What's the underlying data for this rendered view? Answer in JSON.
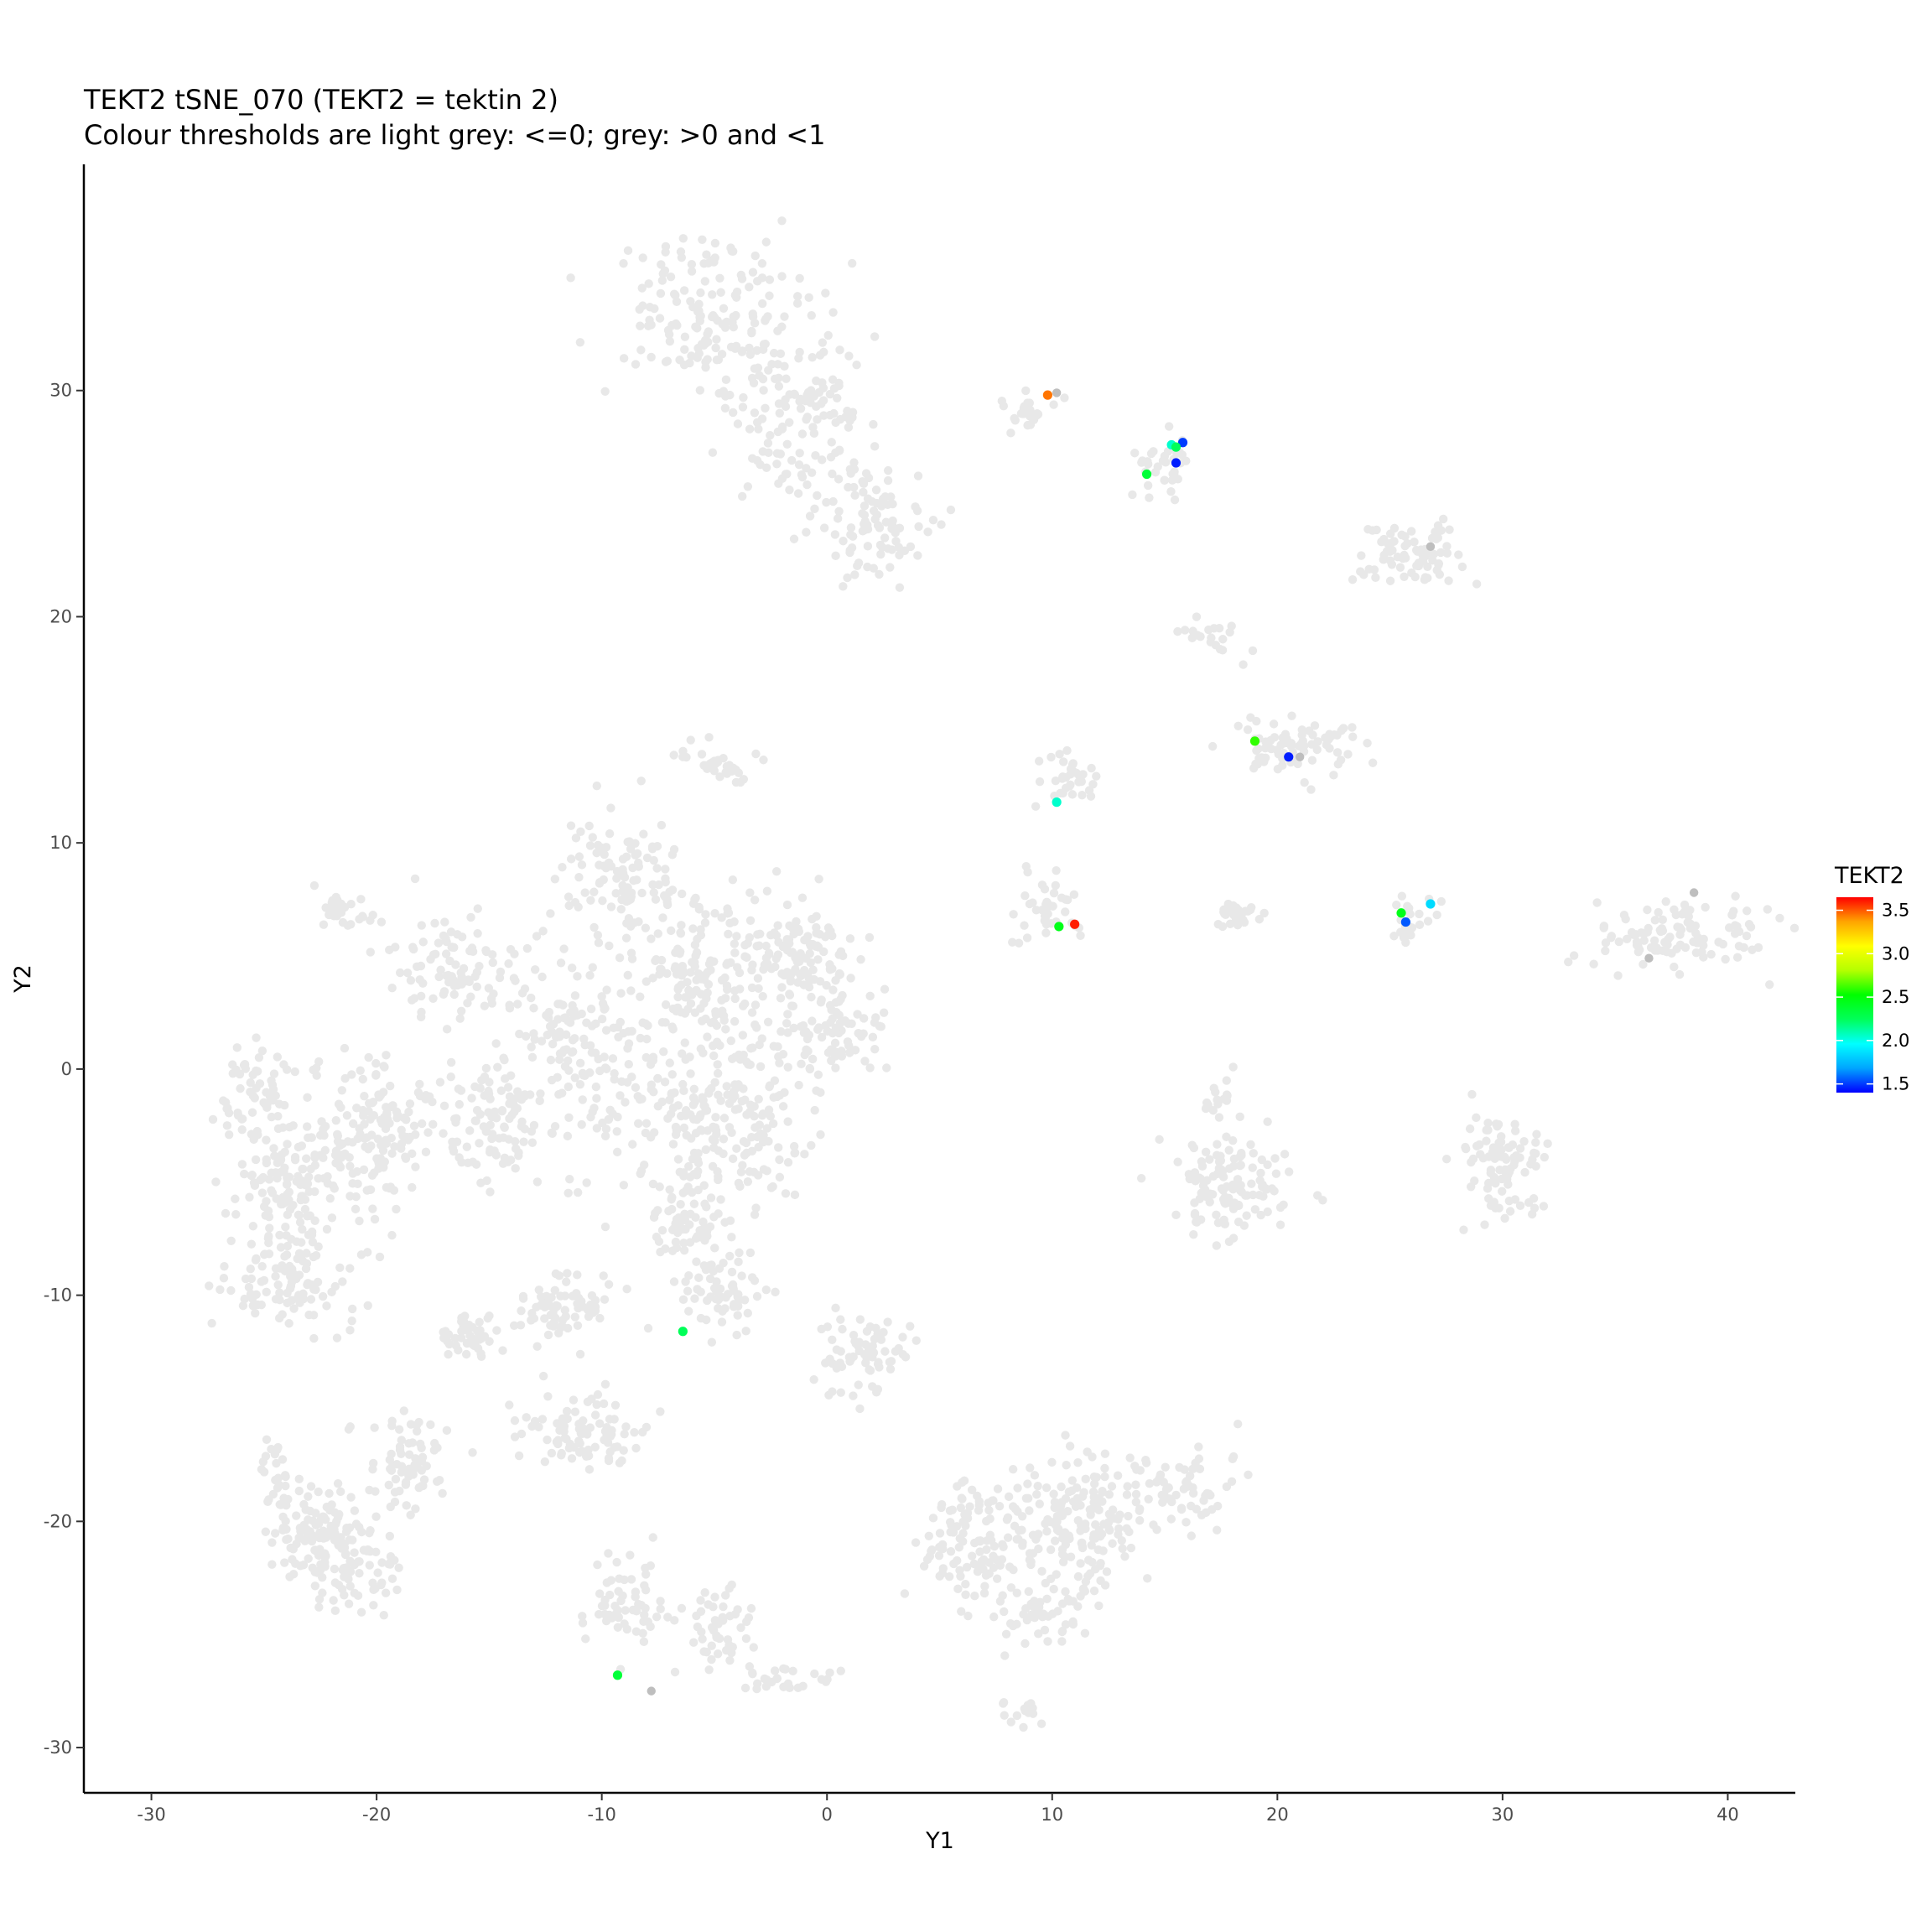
{
  "chart_data": {
    "type": "scatter",
    "title": "TEKT2 tSNE_070 (TEKT2 = tektin 2)",
    "subtitle": "Colour thresholds are light grey: <=0; grey: >0 and <1",
    "xlabel": "Y1",
    "ylabel": "Y2",
    "xlim": [
      -33,
      43
    ],
    "ylim": [
      -32,
      40
    ],
    "x_ticks": [
      -30,
      -20,
      -10,
      0,
      10,
      20,
      30,
      40
    ],
    "y_ticks": [
      -30,
      -20,
      -10,
      0,
      10,
      20,
      30
    ],
    "grid": false,
    "legend": {
      "title": "TEKT2",
      "placement": "right",
      "min": 1.4,
      "max": 3.65,
      "ticks": [
        1.5,
        2.0,
        2.5,
        3.0,
        3.5
      ],
      "tick_labels": [
        "1.5",
        "2.0",
        "2.5",
        "3.0",
        "3.5"
      ],
      "colors": [
        "#0000ff",
        "#00a5ff",
        "#00ffff",
        "#00ff5a",
        "#00ff00",
        "#b4ff00",
        "#ffff00",
        "#ffa500",
        "#ff0000"
      ]
    },
    "background_color": "#e8e8e8",
    "grey_color": "#bebebe",
    "background_clusters": [
      {
        "cx": -5.5,
        "cy": 33.5,
        "sx": 3.0,
        "sy": 2.2,
        "n": 150
      },
      {
        "cx": -1.5,
        "cy": 29.0,
        "sx": 2.2,
        "sy": 3.0,
        "n": 150
      },
      {
        "cx": 2.0,
        "cy": 24.0,
        "sx": 1.6,
        "sy": 1.8,
        "n": 90
      },
      {
        "cx": 9.0,
        "cy": 29.0,
        "sx": 0.9,
        "sy": 0.7,
        "n": 25
      },
      {
        "cx": 15.0,
        "cy": 26.8,
        "sx": 0.9,
        "sy": 0.9,
        "n": 35
      },
      {
        "cx": 26.0,
        "cy": 22.8,
        "sx": 1.6,
        "sy": 0.9,
        "n": 80
      },
      {
        "cx": 20.5,
        "cy": 14.3,
        "sx": 2.0,
        "sy": 0.9,
        "n": 80
      },
      {
        "cx": 10.8,
        "cy": 12.8,
        "sx": 0.9,
        "sy": 0.8,
        "n": 35
      },
      {
        "cx": 17.0,
        "cy": 19.0,
        "sx": 1.6,
        "sy": 0.6,
        "n": 20
      },
      {
        "cx": 10.0,
        "cy": 7.2,
        "sx": 1.1,
        "sy": 0.9,
        "n": 40
      },
      {
        "cx": 18.3,
        "cy": 6.8,
        "sx": 0.7,
        "sy": 0.4,
        "n": 30
      },
      {
        "cx": 25.8,
        "cy": 6.5,
        "sx": 0.8,
        "sy": 0.6,
        "n": 25
      },
      {
        "cx": 37.5,
        "cy": 5.8,
        "sx": 2.5,
        "sy": 1.2,
        "n": 110
      },
      {
        "cx": -5.0,
        "cy": 13.5,
        "sx": 1.4,
        "sy": 0.5,
        "n": 35
      },
      {
        "cx": -9.0,
        "cy": 8.5,
        "sx": 2.0,
        "sy": 2.0,
        "n": 110
      },
      {
        "cx": -5.0,
        "cy": 4.0,
        "sx": 2.2,
        "sy": 2.4,
        "n": 150
      },
      {
        "cx": -1.0,
        "cy": 5.0,
        "sx": 1.8,
        "sy": 1.6,
        "n": 110
      },
      {
        "cx": 0.0,
        "cy": 1.5,
        "sx": 1.7,
        "sy": 1.3,
        "n": 80
      },
      {
        "cx": -4.5,
        "cy": -2.5,
        "sx": 3.0,
        "sy": 2.6,
        "n": 220
      },
      {
        "cx": -11.0,
        "cy": 1.0,
        "sx": 2.8,
        "sy": 3.0,
        "n": 180
      },
      {
        "cx": -16.5,
        "cy": 4.5,
        "sx": 2.0,
        "sy": 1.5,
        "n": 90
      },
      {
        "cx": -21.5,
        "cy": 7.0,
        "sx": 0.8,
        "sy": 0.6,
        "n": 30
      },
      {
        "cx": -15.0,
        "cy": -2.5,
        "sx": 1.8,
        "sy": 2.0,
        "n": 100
      },
      {
        "cx": -20.0,
        "cy": -3.0,
        "sx": 1.8,
        "sy": 2.2,
        "n": 150
      },
      {
        "cx": -23.5,
        "cy": -5.5,
        "sx": 1.6,
        "sy": 2.2,
        "n": 140
      },
      {
        "cx": -25.5,
        "cy": -1.5,
        "sx": 1.0,
        "sy": 1.6,
        "n": 60
      },
      {
        "cx": -24.0,
        "cy": -9.5,
        "sx": 2.0,
        "sy": 1.4,
        "n": 90
      },
      {
        "cx": -16.0,
        "cy": -11.8,
        "sx": 1.0,
        "sy": 0.7,
        "n": 45
      },
      {
        "cx": -11.5,
        "cy": -10.5,
        "sx": 1.4,
        "sy": 1.0,
        "n": 70
      },
      {
        "cx": -4.5,
        "cy": -10.0,
        "sx": 1.3,
        "sy": 0.9,
        "n": 60
      },
      {
        "cx": -6.0,
        "cy": -7.0,
        "sx": 1.5,
        "sy": 1.0,
        "n": 60
      },
      {
        "cx": 1.5,
        "cy": -12.5,
        "sx": 1.4,
        "sy": 1.2,
        "n": 70
      },
      {
        "cx": -10.5,
        "cy": -16.0,
        "sx": 1.8,
        "sy": 1.0,
        "n": 90
      },
      {
        "cx": -21.0,
        "cy": -21.5,
        "sx": 1.4,
        "sy": 1.6,
        "n": 90
      },
      {
        "cx": -24.5,
        "cy": -18.5,
        "sx": 0.6,
        "sy": 1.4,
        "n": 30
      },
      {
        "cx": -23.0,
        "cy": -21.0,
        "sx": 1.3,
        "sy": 1.5,
        "n": 80
      },
      {
        "cx": -18.5,
        "cy": -17.5,
        "sx": 1.3,
        "sy": 1.4,
        "n": 70
      },
      {
        "cx": -9.0,
        "cy": -23.5,
        "sx": 1.2,
        "sy": 1.5,
        "n": 60
      },
      {
        "cx": -4.5,
        "cy": -25.0,
        "sx": 1.0,
        "sy": 1.3,
        "n": 50
      },
      {
        "cx": -1.5,
        "cy": -27.0,
        "sx": 1.6,
        "sy": 0.5,
        "n": 25
      },
      {
        "cx": 6.5,
        "cy": -21.0,
        "sx": 1.6,
        "sy": 2.0,
        "n": 110
      },
      {
        "cx": 11.0,
        "cy": -20.0,
        "sx": 2.0,
        "sy": 2.0,
        "n": 160
      },
      {
        "cx": 9.5,
        "cy": -24.0,
        "sx": 1.8,
        "sy": 1.2,
        "n": 60
      },
      {
        "cx": 16.0,
        "cy": -18.5,
        "sx": 1.8,
        "sy": 1.2,
        "n": 70
      },
      {
        "cx": 18.0,
        "cy": -5.0,
        "sx": 2.0,
        "sy": 1.6,
        "n": 120
      },
      {
        "cx": 17.5,
        "cy": -1.0,
        "sx": 0.6,
        "sy": 1.0,
        "n": 15
      },
      {
        "cx": 30.0,
        "cy": -4.2,
        "sx": 1.2,
        "sy": 1.4,
        "n": 90
      },
      {
        "cx": 8.5,
        "cy": -28.5,
        "sx": 1.2,
        "sy": 0.3,
        "n": 15
      }
    ],
    "grey_points": [
      {
        "x": 26.8,
        "y": 23.1
      },
      {
        "x": 36.5,
        "y": 4.9
      },
      {
        "x": 38.5,
        "y": 7.8
      },
      {
        "x": -7.8,
        "y": -27.5
      },
      {
        "x": 10.2,
        "y": 29.9
      },
      {
        "x": 21.0,
        "y": 13.8
      }
    ],
    "points": [
      {
        "x": 9.8,
        "y": 29.8,
        "value": 3.45
      },
      {
        "x": 15.8,
        "y": 27.7,
        "value": 1.5
      },
      {
        "x": 15.3,
        "y": 27.6,
        "value": 2.05
      },
      {
        "x": 15.5,
        "y": 27.5,
        "value": 2.25
      },
      {
        "x": 15.5,
        "y": 26.8,
        "value": 1.45
      },
      {
        "x": 14.2,
        "y": 26.3,
        "value": 2.35
      },
      {
        "x": 19.0,
        "y": 14.5,
        "value": 2.6
      },
      {
        "x": 20.5,
        "y": 13.8,
        "value": 1.45
      },
      {
        "x": 10.2,
        "y": 11.8,
        "value": 2.05
      },
      {
        "x": 11.0,
        "y": 6.4,
        "value": 3.6
      },
      {
        "x": 10.3,
        "y": 6.3,
        "value": 2.45
      },
      {
        "x": 26.8,
        "y": 7.3,
        "value": 1.85
      },
      {
        "x": 25.5,
        "y": 6.9,
        "value": 2.45
      },
      {
        "x": 25.7,
        "y": 6.5,
        "value": 1.55
      },
      {
        "x": -6.4,
        "y": -11.6,
        "value": 2.25
      },
      {
        "x": -9.3,
        "y": -26.8,
        "value": 2.35
      }
    ]
  }
}
